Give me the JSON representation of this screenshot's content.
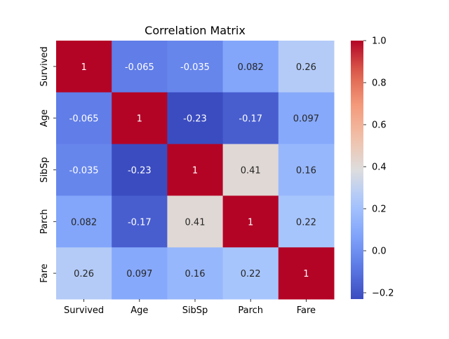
{
  "chart_data": {
    "type": "heatmap",
    "title": "Correlation Matrix",
    "xlabel": "",
    "ylabel": "",
    "x_labels": [
      "Survived",
      "Age",
      "SibSp",
      "Parch",
      "Fare"
    ],
    "y_labels": [
      "Survived",
      "Age",
      "SibSp",
      "Parch",
      "Fare"
    ],
    "values": [
      [
        1,
        -0.065,
        -0.035,
        0.082,
        0.26
      ],
      [
        -0.065,
        1,
        -0.23,
        -0.17,
        0.097
      ],
      [
        -0.035,
        -0.23,
        1,
        0.41,
        0.16
      ],
      [
        0.082,
        -0.17,
        0.41,
        1,
        0.22
      ],
      [
        0.26,
        0.097,
        0.16,
        0.22,
        1
      ]
    ],
    "annotations": [
      [
        "1",
        "-0.065",
        "-0.035",
        "0.082",
        "0.26"
      ],
      [
        "-0.065",
        "1",
        "-0.23",
        "-0.17",
        "0.097"
      ],
      [
        "-0.035",
        "-0.23",
        "1",
        "0.41",
        "0.16"
      ],
      [
        "0.082",
        "-0.17",
        "0.41",
        "1",
        "0.22"
      ],
      [
        "0.26",
        "0.097",
        "0.16",
        "0.22",
        "1"
      ]
    ],
    "colormap": "coolwarm",
    "color_range": [
      -0.23,
      1
    ],
    "colorbar_ticks": [
      "−0.2",
      "0.0",
      "0.2",
      "0.4",
      "0.6",
      "0.8",
      "1.0"
    ],
    "colorbar_tick_values": [
      -0.2,
      0,
      0.2,
      0.4,
      0.6,
      0.8,
      1.0
    ]
  }
}
